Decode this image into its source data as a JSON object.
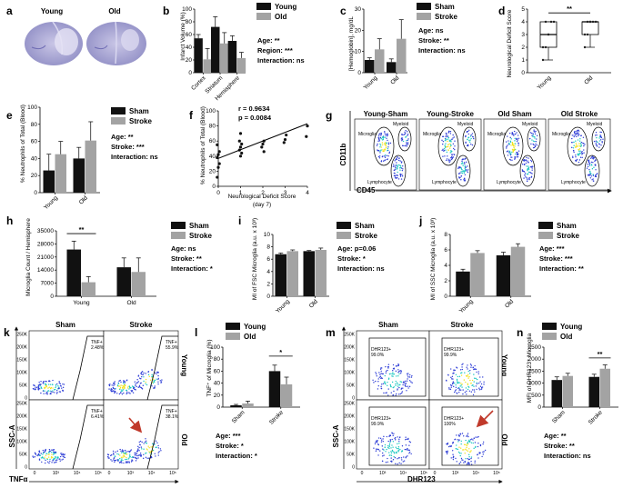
{
  "colors": {
    "black": "#111111",
    "gray": "#a3a3a3",
    "brain_bg": "#a9a8d4",
    "dot_low": "#2c3cd6",
    "dot_mid": "#19c7c0",
    "dot_high": "#f2e219",
    "arrow": "#c0392b",
    "gate": "#000000"
  },
  "panel_a": {
    "letter": "a",
    "young": "Young",
    "old": "Old"
  },
  "panel_b": {
    "letter": "b",
    "ylabel": "Infarct Volume (%)",
    "type": "bar",
    "categories": [
      "Cortex",
      "Striatum",
      "Hemisphere"
    ],
    "series": [
      {
        "name": "Young",
        "values": [
          54,
          72,
          50
        ],
        "err": [
          6,
          16,
          8
        ]
      },
      {
        "name": "Old",
        "values": [
          21,
          46,
          23
        ],
        "err": [
          17,
          17,
          9
        ]
      }
    ],
    "ylim": [
      0,
      100
    ],
    "yticks": [
      "0",
      "20",
      "40",
      "60",
      "80",
      "100"
    ],
    "stats": [
      "Age: **",
      "Region: ***",
      "Interaction: ns"
    ]
  },
  "panel_c": {
    "letter": "c",
    "ylabel": "[Hemoglobin], mg/dL",
    "type": "bar",
    "categories": [
      "Young",
      "Old"
    ],
    "series": [
      {
        "name": "Sham",
        "values": [
          6,
          5
        ],
        "err": [
          1,
          1.5
        ]
      },
      {
        "name": "Stroke",
        "values": [
          11,
          16
        ],
        "err": [
          5,
          9
        ]
      }
    ],
    "ylim": [
      0,
      30
    ],
    "yticks": [
      "0",
      "10",
      "20",
      "30"
    ],
    "stats": [
      "Age: ns",
      "Stroke: **",
      "Interaction: ns"
    ]
  },
  "panel_d": {
    "letter": "d",
    "ylabel": "Neurological Deficit Score",
    "type": "box",
    "categories": [
      "Young",
      "Old"
    ],
    "sig": "**",
    "boxes": [
      {
        "min": 1,
        "q1": 2,
        "median": 3,
        "q3": 4,
        "max": 4
      },
      {
        "min": 2,
        "q1": 3,
        "median": 4,
        "q3": 4,
        "max": 4
      }
    ],
    "ylim": [
      0,
      5
    ],
    "yticks": [
      "0",
      "1",
      "2",
      "3",
      "4",
      "5"
    ]
  },
  "panel_e": {
    "letter": "e",
    "ylabel": "% Neutrophils of Total (Blood)",
    "type": "bar",
    "categories": [
      "Young",
      "Old"
    ],
    "series": [
      {
        "name": "Sham",
        "values": [
          26,
          40
        ],
        "err": [
          19,
          13
        ]
      },
      {
        "name": "Stroke",
        "values": [
          45,
          61
        ],
        "err": [
          15,
          22
        ]
      }
    ],
    "ylim": [
      0,
      100
    ],
    "yticks": [
      "0",
      "20",
      "40",
      "60",
      "80",
      "100"
    ],
    "stats": [
      "Age: **",
      "Stroke: ***",
      "Interaction: ns"
    ]
  },
  "panel_f": {
    "letter": "f",
    "ylabel": "% Neutrophils of Total (Blood)",
    "xlabel": "Neurological Deficit Score",
    "xlabel2": "(day 7)",
    "type": "scatter",
    "r": "r = 0.9634",
    "p": "p = 0.0084",
    "x": [
      0,
      0,
      0,
      0,
      0,
      0,
      0,
      1,
      1,
      1,
      1,
      1,
      1,
      1,
      2,
      2,
      2,
      2,
      3,
      3,
      3,
      4,
      4
    ],
    "y": [
      12,
      25,
      30,
      38,
      42,
      46,
      55,
      40,
      44,
      48,
      52,
      56,
      60,
      70,
      46,
      52,
      56,
      60,
      58,
      62,
      68,
      66,
      80
    ],
    "fit": {
      "slope": 11.5,
      "intercept": 37
    },
    "xlim": [
      0,
      4
    ],
    "ylim": [
      0,
      100
    ],
    "xticks": [
      "0",
      "1",
      "2",
      "3",
      "4"
    ],
    "yticks": [
      "0",
      "20",
      "40",
      "60",
      "80",
      "100"
    ]
  },
  "panel_g": {
    "letter": "g",
    "ylabel": "CD11b",
    "xlabel": "CD45",
    "plots": [
      {
        "title": "Young-Sham"
      },
      {
        "title": "Young-Stroke"
      },
      {
        "title": "Old Sham"
      },
      {
        "title": "Old Stroke"
      }
    ],
    "gates": {
      "myeloid": "Myeloid",
      "microglia": "Microglia",
      "lymphocyte": "Lymphocyte"
    }
  },
  "panel_h": {
    "letter": "h",
    "ylabel": "Microglia Count / Hemisphere",
    "type": "bar",
    "categories": [
      "Young",
      "Old"
    ],
    "sig": "**",
    "series": [
      {
        "name": "Sham",
        "values": [
          25000,
          15500
        ],
        "err": [
          4500,
          5000
        ]
      },
      {
        "name": "Stroke",
        "values": [
          7500,
          13000
        ],
        "err": [
          3000,
          7500
        ]
      }
    ],
    "ylim": [
      0,
      35000
    ],
    "yticks": [
      "0",
      "7000",
      "14000",
      "21000",
      "28000",
      "35000"
    ],
    "stats": [
      "Age: ns",
      "Stroke: **",
      "Interaction: *"
    ]
  },
  "panel_i": {
    "letter": "i",
    "ylabel": "MI of FSC Microglia (a.u. x 10³)",
    "type": "bar",
    "categories": [
      "Young",
      "Old"
    ],
    "series": [
      {
        "name": "Sham",
        "values": [
          6.8,
          7.3
        ],
        "err": [
          0.2,
          0.1
        ]
      },
      {
        "name": "Stroke",
        "values": [
          7.3,
          7.5
        ],
        "err": [
          0.2,
          0.3
        ]
      }
    ],
    "ylim": [
      0,
      10
    ],
    "yticks": [
      "0",
      "2",
      "4",
      "6",
      "8",
      "10"
    ],
    "stats": [
      "Age: p=0.06",
      "Stroke: *",
      "Interaction: ns"
    ]
  },
  "panel_j": {
    "letter": "j",
    "ylabel": "MI of SSC Microglia (a.u. x 10³)",
    "type": "bar",
    "categories": [
      "Young",
      "Old"
    ],
    "series": [
      {
        "name": "Sham",
        "values": [
          3.2,
          5.3
        ],
        "err": [
          0.3,
          0.4
        ]
      },
      {
        "name": "Stroke",
        "values": [
          5.6,
          6.4
        ],
        "err": [
          0.3,
          0.4
        ]
      }
    ],
    "ylim": [
      0,
      8
    ],
    "yticks": [
      "0",
      "2",
      "4",
      "6",
      "8"
    ],
    "stats": [
      "Age: ***",
      "Stroke: ***",
      "Interaction: **"
    ]
  },
  "panel_k": {
    "letter": "k",
    "cols": [
      "Sham",
      "Stroke"
    ],
    "rows": [
      "Young",
      "Old"
    ],
    "ylabel": "SSC-A",
    "xlabel": "TNFα",
    "gate_label": "TNF+",
    "pcts": [
      "2.48%",
      "55.9%",
      "6.41%",
      "38.1%"
    ],
    "yticks": [
      "0",
      "50K",
      "100K",
      "150K",
      "200K",
      "250K"
    ],
    "xticks": [
      "0",
      "10³",
      "10⁴",
      "10⁵"
    ]
  },
  "panel_l": {
    "letter": "l",
    "ylabel": "TNF⁺ of Microglia (%)",
    "type": "bar",
    "categories": [
      "Sham",
      "Stroke"
    ],
    "sig": "*",
    "series": [
      {
        "name": "Young",
        "values": [
          3,
          60
        ],
        "err": [
          1.5,
          10
        ]
      },
      {
        "name": "Old",
        "values": [
          6,
          38
        ],
        "err": [
          4,
          12
        ]
      }
    ],
    "ylim": [
      0,
      100
    ],
    "yticks": [
      "0",
      "20",
      "40",
      "60",
      "80",
      "100"
    ],
    "stats": [
      "Age: ***",
      "Stroke: *",
      "Interaction: *"
    ]
  },
  "panel_m": {
    "letter": "m",
    "cols": [
      "Sham",
      "Stroke"
    ],
    "rows": [
      "Young",
      "Old"
    ],
    "ylabel": "SSC-A",
    "xlabel": "DHR123",
    "gate_label": "DHR123+",
    "pcts": [
      "99.0%",
      "99.9%",
      "99.9%",
      "100%"
    ],
    "yticks": [
      "0",
      "50K",
      "100K",
      "150K",
      "200K",
      "250K"
    ],
    "xticks": [
      "0",
      "10³",
      "10⁴",
      "10⁵"
    ]
  },
  "panel_n": {
    "letter": "n",
    "ylabel": "MFI of DHR123⁺ Microglia",
    "type": "bar",
    "categories": [
      "Sham",
      "Stroke"
    ],
    "sig": "**",
    "series": [
      {
        "name": "Young",
        "values": [
          1130,
          1260
        ],
        "err": [
          130,
          110
        ]
      },
      {
        "name": "Old",
        "values": [
          1300,
          1600
        ],
        "err": [
          110,
          160
        ]
      }
    ],
    "ylim": [
      0,
      2500
    ],
    "yticks": [
      "0",
      "500",
      "1000",
      "1500",
      "2000",
      "2500"
    ],
    "stats": [
      "Age: **",
      "Stroke: **",
      "Interaction: ns"
    ]
  }
}
